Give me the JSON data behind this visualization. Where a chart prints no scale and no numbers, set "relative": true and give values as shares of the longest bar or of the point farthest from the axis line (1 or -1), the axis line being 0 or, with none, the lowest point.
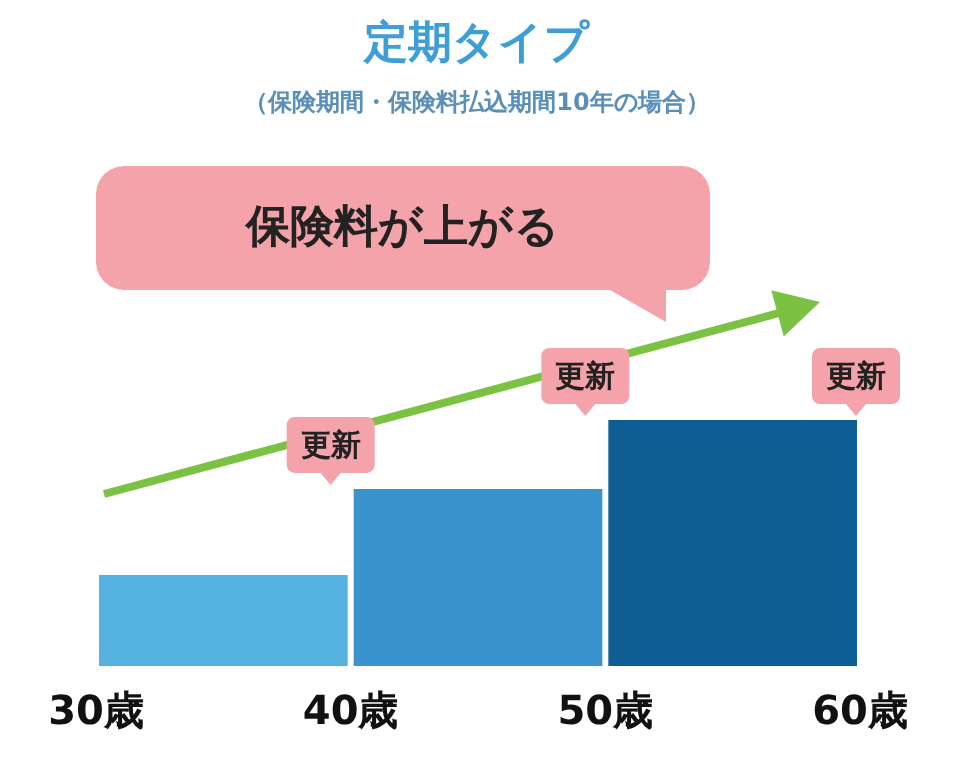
{
  "chart_data": {
    "type": "bar",
    "title": "定期タイプ",
    "subtitle": "（保険期間・保険料払込期間10年の場合）",
    "x": [
      35,
      45,
      55
    ],
    "values": [
      0.37,
      0.72,
      1
    ],
    "colors": [
      "#55b1e0",
      "#3a93cd",
      "#0e5e95"
    ],
    "relative": true,
    "xlim": [
      30,
      60
    ],
    "xticks": [
      {
        "value": 30,
        "label": "30歳"
      },
      {
        "value": 40,
        "label": "40歳"
      },
      {
        "value": 50,
        "label": "50歳"
      },
      {
        "value": 60,
        "label": "60歳"
      }
    ],
    "annotations": [
      "保険料が上がる",
      "更新",
      "更新",
      "更新"
    ]
  }
}
